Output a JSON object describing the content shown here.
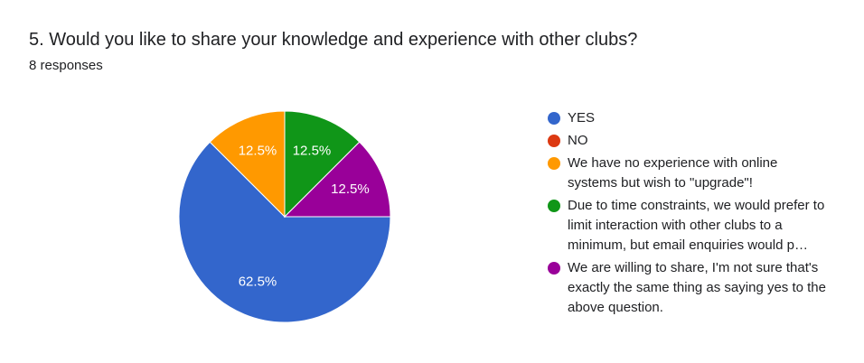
{
  "chart_data": {
    "type": "pie",
    "title": "5. Would you like to share your knowledge and experience with other clubs?",
    "subtitle": "8 responses",
    "series": [
      {
        "name": "YES",
        "color": "#3366cc",
        "values": [
          62.5
        ],
        "value_labels": [
          "62.5%"
        ]
      },
      {
        "name": "NO",
        "color": "#dc3912",
        "values": [
          0
        ],
        "value_labels": [
          null
        ]
      },
      {
        "name": "We have no experience with online systems but wish to \"upgrade\"!",
        "color": "#ff9900",
        "values": [
          12.5
        ],
        "value_labels": [
          "12.5%"
        ]
      },
      {
        "name": "Due to time constraints, we would prefer to limit interaction with other clubs to a minimum, but email enquiries would p…",
        "color": "#109618",
        "values": [
          12.5
        ],
        "value_labels": [
          "12.5%"
        ]
      },
      {
        "name": "We are willing to share, I'm not sure that's exactly the same thing as saying yes to the above question.",
        "color": "#990099",
        "values": [
          12.5
        ],
        "value_labels": [
          "12.5%"
        ]
      }
    ]
  }
}
